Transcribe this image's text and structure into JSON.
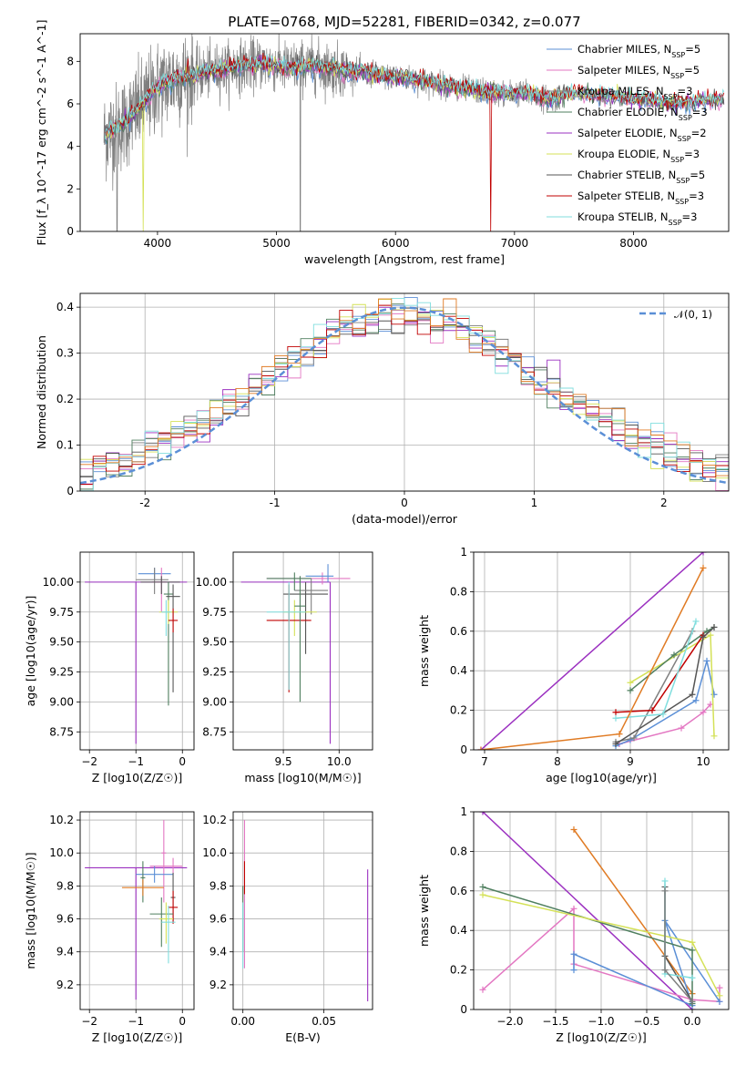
{
  "figure_title": "PLATE=0768, MJD=52281, FIBERID=0342, z=0.077",
  "models": [
    {
      "name": "Chabrier MILES",
      "nssp": 5,
      "color": "#5b8fd6"
    },
    {
      "name": "Salpeter MILES",
      "nssp": 5,
      "color": "#e377c2"
    },
    {
      "name": "Kroupa MILES",
      "nssp": 3,
      "color": "#7f7f7f"
    },
    {
      "name": "Chabrier ELODIE",
      "nssp": 3,
      "color": "#4f7f5f"
    },
    {
      "name": "Salpeter ELODIE",
      "nssp": 2,
      "color": "#9b30c0"
    },
    {
      "name": "Kroupa ELODIE",
      "nssp": 3,
      "color": "#d4e157"
    },
    {
      "name": "Chabrier STELIB",
      "nssp": 5,
      "color": "#555555"
    },
    {
      "name": "Salpeter STELIB",
      "nssp": 3,
      "color": "#c00000"
    },
    {
      "name": "Kroupa STELIB",
      "nssp": 3,
      "color": "#80dede"
    }
  ],
  "chart_data": [
    {
      "id": "spectrum",
      "type": "line",
      "xlabel": "wavelength [Angstrom, rest frame]",
      "ylabel": "Flux [f_λ 10^-17 erg cm^-2 s^-1 A^-1]",
      "xlim": [
        3350,
        8800
      ],
      "ylim": [
        0,
        9.3
      ],
      "xticks": [
        4000,
        5000,
        6000,
        7000,
        8000
      ],
      "yticks": [
        0,
        2,
        4,
        6,
        8
      ],
      "grid": false,
      "legend": "top-right",
      "continuum": {
        "x": [
          3550,
          3700,
          3850,
          4000,
          4150,
          4300,
          4500,
          4700,
          4900,
          5100,
          5300,
          5500,
          5700,
          5900,
          6100,
          6300,
          6500,
          6700,
          6900,
          7100,
          7300,
          7500,
          7700,
          7900,
          8100,
          8300,
          8500,
          8700
        ],
        "y": [
          4.5,
          5.0,
          5.8,
          6.8,
          7.2,
          7.3,
          7.6,
          7.8,
          7.9,
          7.7,
          7.8,
          7.6,
          7.5,
          7.3,
          7.2,
          7.0,
          6.8,
          6.6,
          6.5,
          6.5,
          6.2,
          6.5,
          6.4,
          6.3,
          6.2,
          6.0,
          6.1,
          6.2
        ]
      }
    },
    {
      "id": "residuals",
      "type": "histogram",
      "xlabel": "(data-model)/error",
      "ylabel": "Normed distribution",
      "xlim": [
        -2.5,
        2.5
      ],
      "ylim": [
        0,
        0.43
      ],
      "xticks": [
        -2,
        -1,
        0,
        1,
        2
      ],
      "yticks": [
        0.0,
        0.1,
        0.2,
        0.3,
        0.4
      ],
      "grid": true,
      "legend": "top-right",
      "legend_label": "𝒩(0, 1)",
      "bin_width": 0.1,
      "reference_curve": "standard normal"
    },
    {
      "id": "age-vs-Z",
      "type": "errorbar",
      "xlabel": "Z [log10(Z/Z☉)]",
      "ylabel": "age  [log10(age/yr)]",
      "xlim": [
        -2.2,
        0.25
      ],
      "ylim": [
        8.6,
        10.25
      ],
      "xticks": [
        -2,
        -1,
        0
      ],
      "xticklabels": [
        "−2",
        "−1",
        "0"
      ],
      "yticks": [
        8.75,
        9.0,
        9.25,
        9.5,
        9.75,
        10.0
      ],
      "yticklabels": [
        "8.75",
        "9.00",
        "9.25",
        "9.50",
        "9.75",
        "10.00"
      ],
      "grid": true,
      "points": [
        {
          "m": 4,
          "x": -1.0,
          "xe": [
            1.1,
            1.1
          ],
          "y": 10.0,
          "ye": [
            1.35,
            0.0
          ]
        },
        {
          "m": 0,
          "x": -0.6,
          "xe": [
            0.35,
            0.35
          ],
          "y": 10.07,
          "ye": [
            0.05,
            0.05
          ]
        },
        {
          "m": 1,
          "x": -0.45,
          "xe": [
            0.2,
            0.1
          ],
          "y": 10.0,
          "ye": [
            0.25,
            0.12
          ]
        },
        {
          "m": 2,
          "x": -0.6,
          "xe": [
            0.4,
            0.3
          ],
          "y": 10.02,
          "ye": [
            0.12,
            0.1
          ]
        },
        {
          "m": 6,
          "x": -0.45,
          "xe": [
            0.45,
            0.4
          ],
          "y": 10.0,
          "ye": [
            0.1,
            0.05
          ]
        },
        {
          "m": 3,
          "x": -0.3,
          "xe": [
            0.1,
            0.1
          ],
          "y": 9.9,
          "ye": [
            0.93,
            0.1
          ]
        },
        {
          "m": 5,
          "x": -0.3,
          "xe": [
            0.2,
            0.2
          ],
          "y": 9.75,
          "ye": [
            0.1,
            0.1
          ]
        },
        {
          "m": 6,
          "x": -0.2,
          "xe": [
            0.15,
            0.15
          ],
          "y": 9.88,
          "ye": [
            0.8,
            0.1
          ]
        },
        {
          "m": 7,
          "x": -0.2,
          "xe": [
            0.1,
            0.1
          ],
          "y": 9.68,
          "ye": [
            0.1,
            0.1
          ]
        },
        {
          "m": 8,
          "x": -0.35,
          "xe": [
            0.1,
            0.1
          ],
          "y": 9.75,
          "ye": [
            0.2,
            0.1
          ]
        }
      ]
    },
    {
      "id": "age-vs-mass",
      "type": "errorbar",
      "xlabel": "mass [log10(M/M☉)]",
      "ylabel": "",
      "xlim": [
        9.05,
        10.3
      ],
      "ylim": [
        8.6,
        10.25
      ],
      "xticks": [
        9.5,
        10.0
      ],
      "xticklabels": [
        "9.5",
        "10.0"
      ],
      "yticks": [
        8.75,
        9.0,
        9.25,
        9.5,
        9.75,
        10.0
      ],
      "yticklabels": [
        "8.75",
        "9.00",
        "9.25",
        "9.50",
        "9.75",
        "10.00"
      ],
      "grid": true,
      "points": [
        {
          "m": 4,
          "x": 9.92,
          "xe": [
            0.8,
            0.0
          ],
          "y": 10.0,
          "ye": [
            1.35,
            0.0
          ]
        },
        {
          "m": 1,
          "x": 9.85,
          "xe": [
            0.5,
            0.25
          ],
          "y": 10.03,
          "ye": [
            0.05,
            0.05
          ]
        },
        {
          "m": 0,
          "x": 9.9,
          "xe": [
            0.2,
            0.05
          ],
          "y": 10.05,
          "ye": [
            0.05,
            0.1
          ]
        },
        {
          "m": 3,
          "x": 9.6,
          "xe": [
            0.25,
            0.15
          ],
          "y": 10.03,
          "ye": [
            0.1,
            0.05
          ]
        },
        {
          "m": 6,
          "x": 9.7,
          "xe": [
            0.2,
            0.2
          ],
          "y": 9.9,
          "ye": [
            0.5,
            0.1
          ]
        },
        {
          "m": 2,
          "x": 9.75,
          "xe": [
            0.15,
            0.15
          ],
          "y": 9.93,
          "ye": [
            0.2,
            0.1
          ]
        },
        {
          "m": 5,
          "x": 9.6,
          "xe": [
            0.1,
            0.2
          ],
          "y": 9.75,
          "ye": [
            0.2,
            0.1
          ]
        },
        {
          "m": 7,
          "x": 9.55,
          "xe": [
            0.2,
            0.2
          ],
          "y": 9.68,
          "ye": [
            0.6,
            0.3
          ]
        },
        {
          "m": 3,
          "x": 9.65,
          "xe": [
            0.05,
            0.05
          ],
          "y": 9.8,
          "ye": [
            0.8,
            0.25
          ]
        },
        {
          "m": 8,
          "x": 9.55,
          "xe": [
            0.2,
            0.15
          ],
          "y": 9.75,
          "ye": [
            0.65,
            0.25
          ]
        }
      ]
    },
    {
      "id": "weight-vs-age",
      "type": "line",
      "xlabel": "age  [log10(age/yr)]",
      "ylabel": "mass weight",
      "xlim": [
        6.85,
        10.35
      ],
      "ylim": [
        0,
        1.0
      ],
      "xticks": [
        7,
        8,
        9,
        10
      ],
      "yticks": [
        0.0,
        0.2,
        0.4,
        0.6,
        0.8,
        1.0
      ],
      "grid": true,
      "series": [
        {
          "m": 4,
          "x": [
            6.95,
            10.0
          ],
          "y": [
            0.0,
            1.0
          ]
        },
        {
          "m": 1,
          "x": [
            8.85,
            9.7,
            10.0,
            10.1
          ],
          "y": [
            0.03,
            0.11,
            0.19,
            0.23
          ]
        },
        {
          "m": 0,
          "x": [
            8.8,
            9.0,
            9.9,
            10.05,
            10.15
          ],
          "y": [
            0.02,
            0.05,
            0.25,
            0.45,
            0.28
          ]
        },
        {
          "m": 2,
          "x": [
            8.8,
            9.05,
            9.85
          ],
          "y": [
            0.04,
            0.06,
            0.6
          ]
        },
        {
          "m": 5,
          "x": [
            9.0,
            10.1,
            10.15
          ],
          "y": [
            0.34,
            0.58,
            0.07
          ]
        },
        {
          "m": 3,
          "x": [
            9.0,
            9.6,
            10.05,
            10.15
          ],
          "y": [
            0.3,
            0.48,
            0.6,
            0.62
          ]
        },
        {
          "m": 7,
          "x": [
            8.8,
            9.3,
            10.0
          ],
          "y": [
            0.19,
            0.2,
            0.58
          ]
        },
        {
          "m": 6,
          "x": [
            8.8,
            9.85,
            10.0,
            10.15
          ],
          "y": [
            0.03,
            0.28,
            0.57,
            0.62
          ]
        },
        {
          "m": 8,
          "x": [
            8.8,
            9.45,
            9.9
          ],
          "y": [
            0.16,
            0.18,
            0.65
          ]
        },
        {
          "m": 9,
          "x": [
            6.95,
            8.85,
            10.0
          ],
          "y": [
            0.0,
            0.08,
            0.92
          ]
        }
      ]
    },
    {
      "id": "mass-vs-Z",
      "type": "errorbar",
      "xlabel": "Z [log10(Z/Z☉)]",
      "ylabel": "mass [log10(M/M☉)]",
      "xlim": [
        -2.2,
        0.25
      ],
      "ylim": [
        9.05,
        10.25
      ],
      "xticks": [
        -2,
        -1,
        0
      ],
      "xticklabels": [
        "−2",
        "−1",
        "0"
      ],
      "yticks": [
        9.2,
        9.4,
        9.6,
        9.8,
        10.0,
        10.2
      ],
      "yticklabels": [
        "9.2",
        "9.4",
        "9.6",
        "9.8",
        "10.0",
        "10.2"
      ],
      "grid": true,
      "points": [
        {
          "m": 4,
          "x": -1.0,
          "xe": [
            1.1,
            1.1
          ],
          "y": 9.91,
          "ye": [
            0.8,
            0.0
          ]
        },
        {
          "m": 1,
          "x": -0.4,
          "xe": [
            0.05,
            0.05
          ],
          "y": 10.0,
          "ye": [
            0.3,
            0.2
          ]
        },
        {
          "m": 1,
          "x": -0.2,
          "xe": [
            0.5,
            0.2
          ],
          "y": 9.92,
          "ye": [
            0.05,
            0.05
          ]
        },
        {
          "m": 0,
          "x": -0.6,
          "xe": [
            0.4,
            0.4
          ],
          "y": 9.87,
          "ye": [
            0.05,
            0.05
          ]
        },
        {
          "m": 3,
          "x": -0.85,
          "xe": [
            0.05,
            0.05
          ],
          "y": 9.85,
          "ye": [
            0.15,
            0.1
          ]
        },
        {
          "m": 9,
          "x": -0.85,
          "xe": [
            0.45,
            0.45
          ],
          "y": 9.79,
          "ye": [
            0.05,
            0.05
          ]
        },
        {
          "m": 6,
          "x": -0.2,
          "xe": [
            0.05,
            0.05
          ],
          "y": 9.73,
          "ye": [
            0.15,
            0.15
          ]
        },
        {
          "m": 7,
          "x": -0.2,
          "xe": [
            0.1,
            0.1
          ],
          "y": 9.67,
          "ye": [
            0.1,
            0.1
          ]
        },
        {
          "m": 3,
          "x": -0.45,
          "xe": [
            0.25,
            0.25
          ],
          "y": 9.63,
          "ye": [
            0.2,
            0.1
          ]
        },
        {
          "m": 5,
          "x": -0.35,
          "xe": [
            0.15,
            0.15
          ],
          "y": 9.6,
          "ye": [
            0.15,
            0.1
          ]
        },
        {
          "m": 8,
          "x": -0.3,
          "xe": [
            0.15,
            0.15
          ],
          "y": 9.58,
          "ye": [
            0.25,
            0.1
          ]
        }
      ]
    },
    {
      "id": "mass-vs-EBV",
      "type": "errorbar",
      "xlabel": "E(B-V)",
      "ylabel": "",
      "xlim": [
        -0.006,
        0.08
      ],
      "ylim": [
        9.05,
        10.25
      ],
      "xticks": [
        0.0,
        0.05
      ],
      "xticklabels": [
        "0.00",
        "0.05"
      ],
      "yticks": [
        9.2,
        9.4,
        9.6,
        9.8,
        10.0,
        10.2
      ],
      "yticklabels": [
        "9.2",
        "9.4",
        "9.6",
        "9.8",
        "10.0",
        "10.2"
      ],
      "grid": true,
      "points": [
        {
          "m": 4,
          "x": 0.077,
          "xe": [
            0,
            0
          ],
          "y": 9.5,
          "ye": [
            0.4,
            0.4
          ]
        },
        {
          "m": 1,
          "x": 0.001,
          "xe": [
            0,
            0
          ],
          "y": 9.8,
          "ye": [
            0.5,
            0.4
          ]
        },
        {
          "m": 7,
          "x": 0.001,
          "xe": [
            0,
            0
          ],
          "y": 9.85,
          "ye": [
            0.1,
            0.1
          ]
        },
        {
          "m": 3,
          "x": 0.0,
          "xe": [
            0,
            0
          ],
          "y": 9.6,
          "ye": [
            0.2,
            0.2
          ]
        },
        {
          "m": 8,
          "x": 0.0,
          "xe": [
            0,
            0
          ],
          "y": 9.5,
          "ye": [
            0.2,
            0.2
          ]
        }
      ]
    },
    {
      "id": "weight-vs-Z",
      "type": "line",
      "xlabel": "Z [log10(Z/Z☉)]",
      "ylabel": "mass weight",
      "xlim": [
        -2.4,
        0.4
      ],
      "ylim": [
        0,
        1.0
      ],
      "xticks": [
        -2.0,
        -1.5,
        -1.0,
        -0.5,
        0.0
      ],
      "xticklabels": [
        "−2.0",
        "−1.5",
        "−1.0",
        "−0.5",
        "0.0"
      ],
      "yticks": [
        0.0,
        0.2,
        0.4,
        0.6,
        0.8,
        1.0
      ],
      "grid": true,
      "series": [
        {
          "m": 4,
          "x": [
            -2.3,
            0.0
          ],
          "y": [
            1.0,
            0.0
          ]
        },
        {
          "m": 9,
          "x": [
            -1.3,
            0.0
          ],
          "y": [
            0.91,
            0.08
          ]
        },
        {
          "m": 1,
          "x": [
            -2.3,
            -1.3,
            -1.3,
            0.0,
            0.3,
            0.3
          ],
          "y": [
            0.1,
            0.51,
            0.23,
            0.05,
            0.04,
            0.11
          ]
        },
        {
          "m": 0,
          "x": [
            -1.3,
            -1.3,
            0.0,
            -0.3,
            0.3
          ],
          "y": [
            0.2,
            0.28,
            0.02,
            0.45,
            0.04
          ]
        },
        {
          "m": 3,
          "x": [
            -2.3,
            0.0,
            0.0
          ],
          "y": [
            0.62,
            0.3,
            0.03
          ]
        },
        {
          "m": 5,
          "x": [
            -2.3,
            0.0,
            0.3
          ],
          "y": [
            0.58,
            0.34,
            0.07
          ]
        },
        {
          "m": 6,
          "x": [
            -0.3,
            -0.3,
            0.0
          ],
          "y": [
            0.62,
            0.27,
            0.04
          ]
        },
        {
          "m": 8,
          "x": [
            -0.3,
            -0.3,
            0.0
          ],
          "y": [
            0.65,
            0.18,
            0.16
          ]
        },
        {
          "m": 2,
          "x": [
            -0.3,
            -0.3,
            0.0
          ],
          "y": [
            0.6,
            0.2,
            0.04
          ]
        }
      ]
    }
  ]
}
